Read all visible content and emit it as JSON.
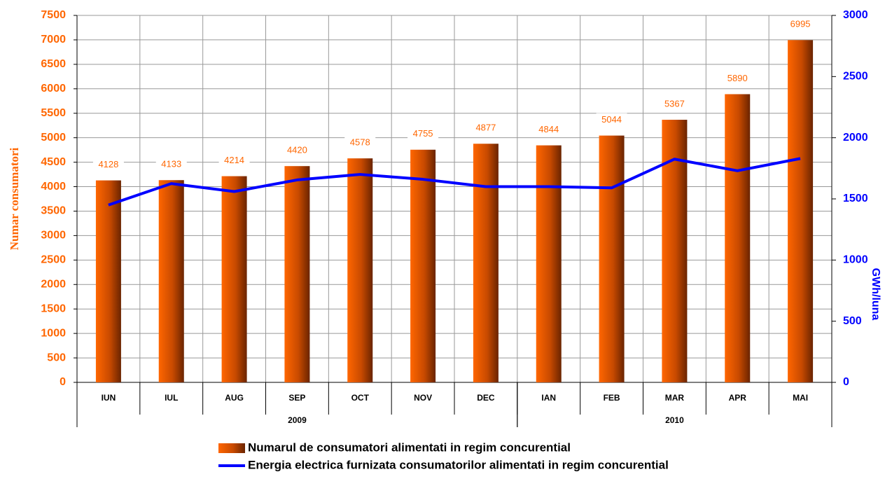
{
  "chart_data": {
    "type": "bar_line",
    "categories": [
      "IUN",
      "IUL",
      "AUG",
      "SEP",
      "OCT",
      "NOV",
      "DEC",
      "IAN",
      "FEB",
      "MAR",
      "APR",
      "MAI"
    ],
    "groups": [
      {
        "label": "2009",
        "count": 7
      },
      {
        "label": "2010",
        "count": 5
      }
    ],
    "series": [
      {
        "name": "Numarul de consumatori alimentati in regim concurential",
        "type": "bar",
        "axis": "y",
        "color": "#ff6600",
        "values": [
          4128,
          4133,
          4214,
          4420,
          4578,
          4755,
          4877,
          4844,
          5044,
          5367,
          5890,
          6995
        ]
      },
      {
        "name": "Energia electrica furnizata consumatorilor alimentati in regim concurential",
        "type": "line",
        "axis": "y2",
        "color": "#0000ff",
        "values": [
          1450,
          1625,
          1560,
          1655,
          1700,
          1660,
          1600,
          1600,
          1590,
          1825,
          1730,
          1830
        ]
      }
    ],
    "ylabel": "Numar consumatori",
    "y2label": "GWh/luna",
    "ylim": [
      0,
      7500
    ],
    "yticks": [
      0,
      500,
      1000,
      1500,
      2000,
      2500,
      3000,
      3500,
      4000,
      4500,
      5000,
      5500,
      6000,
      6500,
      7000,
      7500
    ],
    "y2lim": [
      0,
      3000
    ],
    "y2ticks": [
      0,
      500,
      1000,
      1500,
      2000,
      2500,
      3000
    ],
    "grid": true,
    "legend": "bottom"
  }
}
